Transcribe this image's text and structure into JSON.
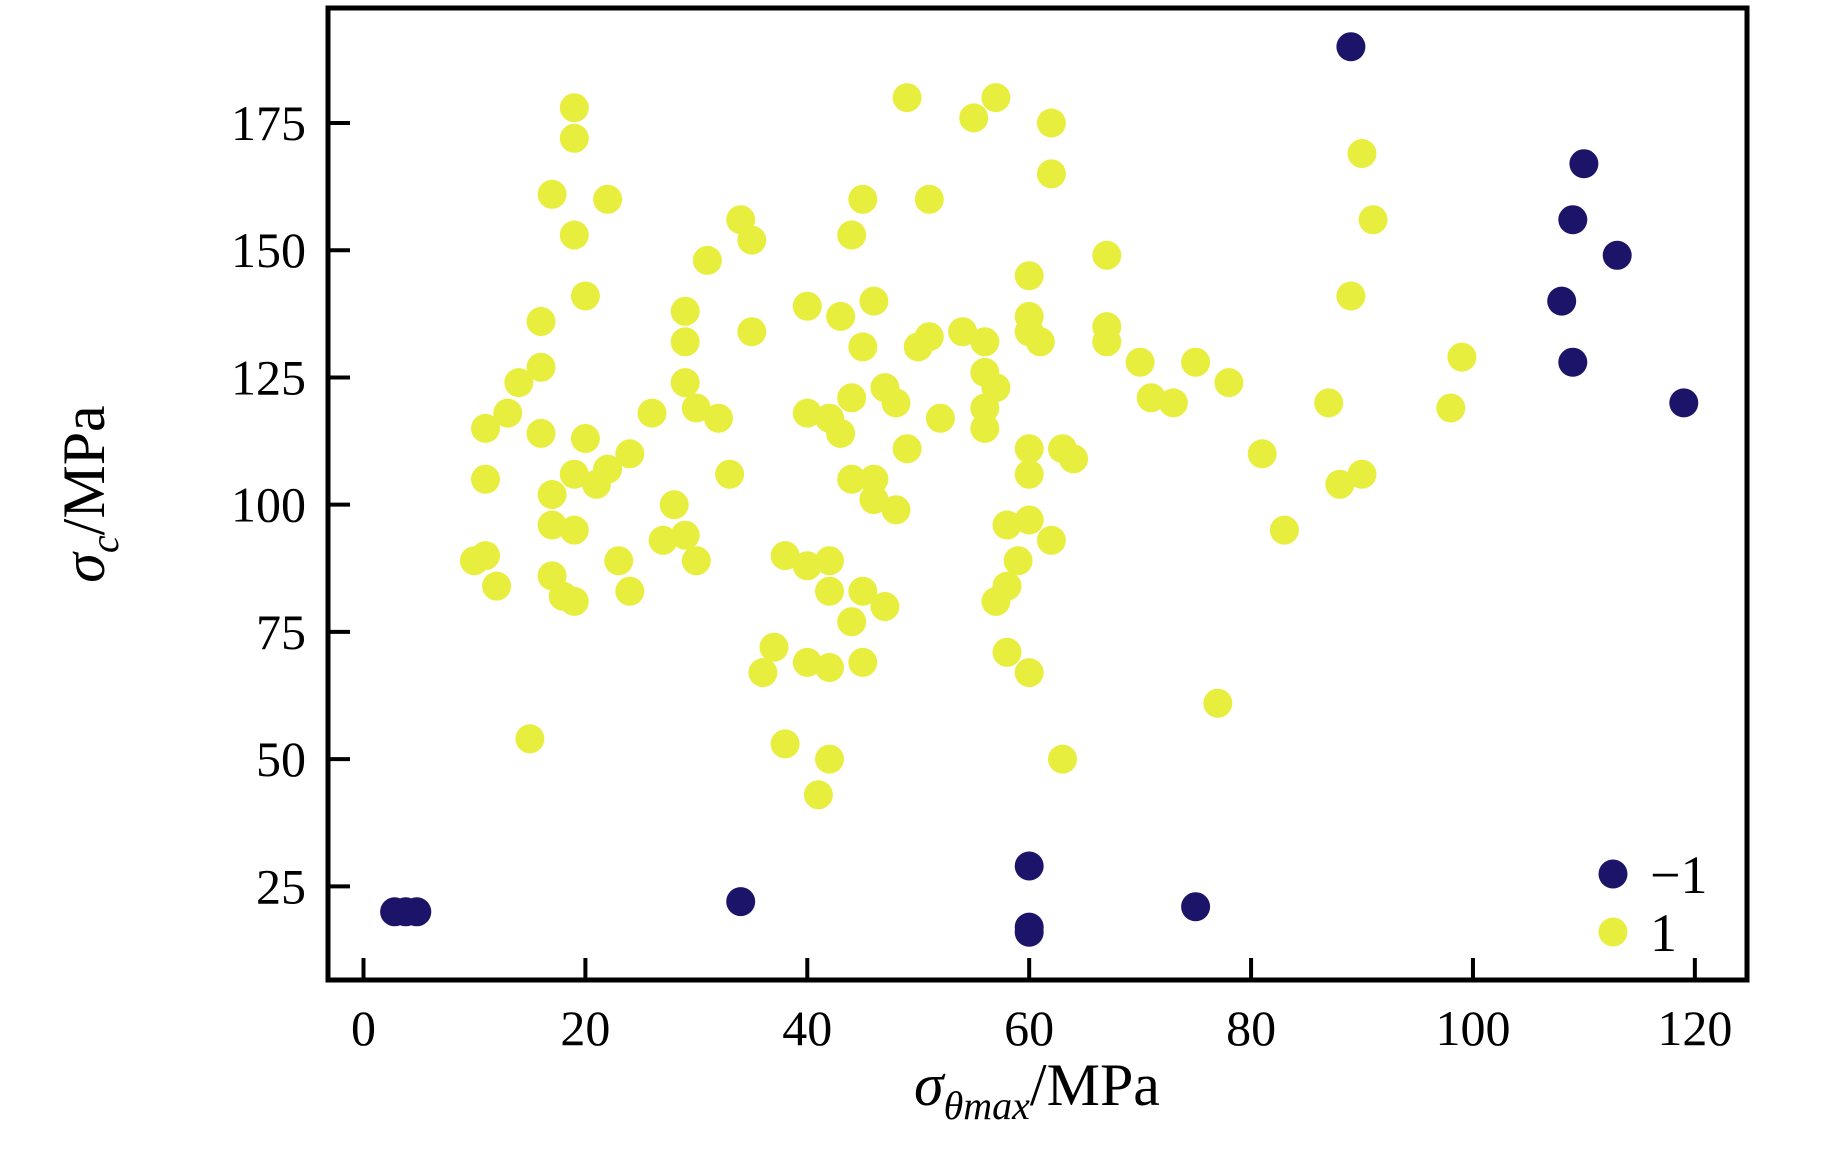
{
  "chart_data": {
    "type": "scatter",
    "title": "",
    "xlabel": {
      "sigma": "σ",
      "subscript": "θmax",
      "rest": "/MPa"
    },
    "ylabel": {
      "sigma": "σ",
      "subscript": "c",
      "rest": "/MPa"
    },
    "xlim": [
      -3.2,
      124.7
    ],
    "ylim": [
      6.6,
      197.6
    ],
    "xticks": [
      0,
      20,
      40,
      60,
      80,
      100,
      120
    ],
    "yticks": [
      25,
      50,
      75,
      100,
      125,
      150,
      175
    ],
    "grid": false,
    "legend_position": "lower right",
    "legend": [
      {
        "label": "−1",
        "color": "#1c1468"
      },
      {
        "label": "1",
        "color": "#e8ee3d"
      }
    ],
    "series": [
      {
        "name": "−1",
        "color": "#1c1468",
        "points": [
          [
            2.8,
            20
          ],
          [
            3.8,
            20
          ],
          [
            4.8,
            20
          ],
          [
            34,
            22
          ],
          [
            60,
            29
          ],
          [
            60,
            17
          ],
          [
            60,
            16
          ],
          [
            75,
            21
          ],
          [
            89,
            190
          ],
          [
            110,
            167
          ],
          [
            109,
            156
          ],
          [
            113,
            149
          ],
          [
            108,
            140
          ],
          [
            109,
            128
          ],
          [
            119,
            120
          ]
        ]
      },
      {
        "name": "1",
        "color": "#e8ee3d",
        "points": [
          [
            19,
            178
          ],
          [
            19,
            172
          ],
          [
            17,
            161
          ],
          [
            22,
            160
          ],
          [
            19,
            153
          ],
          [
            34,
            156
          ],
          [
            35,
            152
          ],
          [
            31,
            148
          ],
          [
            20,
            141
          ],
          [
            16,
            136
          ],
          [
            29,
            138
          ],
          [
            40,
            139
          ],
          [
            35,
            134
          ],
          [
            16,
            127
          ],
          [
            14,
            124
          ],
          [
            13,
            118
          ],
          [
            11,
            115
          ],
          [
            16,
            114
          ],
          [
            20,
            113
          ],
          [
            26,
            118
          ],
          [
            29,
            124
          ],
          [
            29,
            132
          ],
          [
            30,
            119
          ],
          [
            32,
            117
          ],
          [
            40,
            118
          ],
          [
            24,
            110
          ],
          [
            22,
            107
          ],
          [
            19,
            106
          ],
          [
            21,
            104
          ],
          [
            33,
            106
          ],
          [
            11,
            105
          ],
          [
            17,
            102
          ],
          [
            28,
            100
          ],
          [
            17,
            96
          ],
          [
            19,
            95
          ],
          [
            27,
            93
          ],
          [
            29,
            94
          ],
          [
            30,
            89
          ],
          [
            10,
            89
          ],
          [
            11,
            90
          ],
          [
            12,
            84
          ],
          [
            23,
            89
          ],
          [
            24,
            83
          ],
          [
            17,
            86
          ],
          [
            18,
            82
          ],
          [
            19,
            81
          ],
          [
            38,
            90
          ],
          [
            40,
            88
          ],
          [
            42,
            89
          ],
          [
            15,
            54
          ],
          [
            49,
            180
          ],
          [
            57,
            180
          ],
          [
            55,
            176
          ],
          [
            62,
            175
          ],
          [
            62,
            165
          ],
          [
            45,
            160
          ],
          [
            51,
            160
          ],
          [
            44,
            153
          ],
          [
            67,
            149
          ],
          [
            60,
            145
          ],
          [
            46,
            140
          ],
          [
            43,
            137
          ],
          [
            60,
            137
          ],
          [
            67,
            135
          ],
          [
            54,
            134
          ],
          [
            60,
            134
          ],
          [
            45,
            131
          ],
          [
            51,
            133
          ],
          [
            50,
            131
          ],
          [
            56,
            132
          ],
          [
            61,
            132
          ],
          [
            67,
            132
          ],
          [
            70,
            128
          ],
          [
            75,
            128
          ],
          [
            71,
            121
          ],
          [
            73,
            120
          ],
          [
            78,
            124
          ],
          [
            42,
            117
          ],
          [
            43,
            114
          ],
          [
            44,
            121
          ],
          [
            47,
            123
          ],
          [
            48,
            120
          ],
          [
            52,
            117
          ],
          [
            56,
            126
          ],
          [
            57,
            123
          ],
          [
            56,
            119
          ],
          [
            56,
            115
          ],
          [
            49,
            111
          ],
          [
            60,
            111
          ],
          [
            63,
            111
          ],
          [
            64,
            109
          ],
          [
            60,
            106
          ],
          [
            44,
            105
          ],
          [
            46,
            105
          ],
          [
            46,
            101
          ],
          [
            48,
            99
          ],
          [
            58,
            96
          ],
          [
            60,
            97
          ],
          [
            62,
            93
          ],
          [
            59,
            89
          ],
          [
            58,
            84
          ],
          [
            57,
            81
          ],
          [
            42,
            83
          ],
          [
            45,
            83
          ],
          [
            44,
            77
          ],
          [
            47,
            80
          ],
          [
            81,
            110
          ],
          [
            83,
            95
          ],
          [
            36,
            67
          ],
          [
            37,
            72
          ],
          [
            40,
            69
          ],
          [
            42,
            68
          ],
          [
            45,
            69
          ],
          [
            58,
            71
          ],
          [
            60,
            67
          ],
          [
            77,
            61
          ],
          [
            63,
            50
          ],
          [
            42,
            50
          ],
          [
            38,
            53
          ],
          [
            41,
            43
          ],
          [
            90,
            169
          ],
          [
            91,
            156
          ],
          [
            89,
            141
          ],
          [
            87,
            120
          ],
          [
            99,
            129
          ],
          [
            98,
            119
          ],
          [
            88,
            104
          ],
          [
            90,
            106
          ]
        ]
      }
    ]
  },
  "layout_note": "scatter classification plot, two classes"
}
